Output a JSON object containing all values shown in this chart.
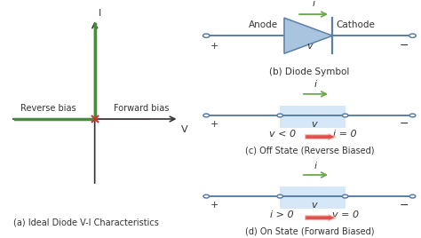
{
  "fig_width": 4.74,
  "fig_height": 2.68,
  "dpi": 100,
  "bg_color": "#ffffff",
  "axis_color": "#333333",
  "line_color": "#4a8c3f",
  "red_line_color": "#cc6666",
  "diode_fill": "#a8c4de",
  "wire_color": "#5b7fa6",
  "green_arrow": "#6aaa4a",
  "red_arrow": "#e05050",
  "bg_rect": "#d6e8f7",
  "text_color": "#333333",
  "title": "(a) Ideal Diode V-I Characteristics",
  "reverse_bias": "Reverse bias",
  "forward_bias": "Forward bias",
  "xlabel": "V",
  "ylabel": "I",
  "panel_b_label": "(b) Diode Symbol",
  "panel_c_label": "(c) Off State (Reverse Biased)",
  "panel_d_label": "(d) On State (Forward Biased)",
  "eq_c1": "v < 0",
  "eq_c2": "i = 0",
  "eq_d1": "i > 0",
  "eq_d2": "v = 0",
  "anode": "Anode",
  "cathode": "Cathode",
  "curr": "i",
  "volt": "v",
  "plus": "+",
  "minus": "−"
}
